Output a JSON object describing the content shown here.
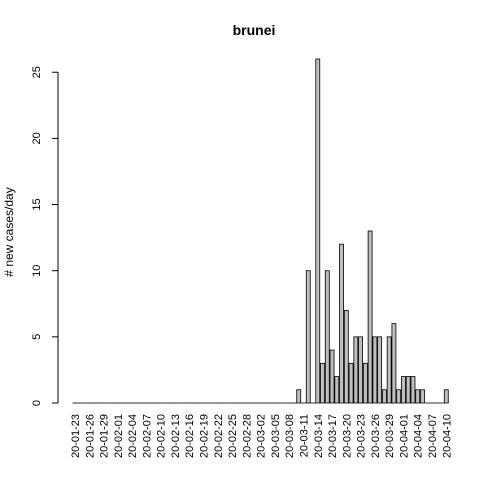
{
  "chart_data": {
    "type": "bar",
    "title": "brunei",
    "xlabel": "",
    "ylabel": "# new cases/day",
    "ylim": [
      0,
      26
    ],
    "yticks": [
      0,
      5,
      10,
      15,
      20,
      25
    ],
    "categories": [
      "20-01-23",
      "20-01-24",
      "20-01-25",
      "20-01-26",
      "20-01-27",
      "20-01-28",
      "20-01-29",
      "20-01-30",
      "20-01-31",
      "20-02-01",
      "20-02-02",
      "20-02-03",
      "20-02-04",
      "20-02-05",
      "20-02-06",
      "20-02-07",
      "20-02-08",
      "20-02-09",
      "20-02-10",
      "20-02-11",
      "20-02-12",
      "20-02-13",
      "20-02-14",
      "20-02-15",
      "20-02-16",
      "20-02-17",
      "20-02-18",
      "20-02-19",
      "20-02-20",
      "20-02-21",
      "20-02-22",
      "20-02-23",
      "20-02-24",
      "20-02-25",
      "20-02-26",
      "20-02-27",
      "20-02-28",
      "20-02-29",
      "20-03-01",
      "20-03-02",
      "20-03-03",
      "20-03-04",
      "20-03-05",
      "20-03-06",
      "20-03-07",
      "20-03-08",
      "20-03-09",
      "20-03-10",
      "20-03-11",
      "20-03-12",
      "20-03-13",
      "20-03-14",
      "20-03-15",
      "20-03-16",
      "20-03-17",
      "20-03-18",
      "20-03-19",
      "20-03-20",
      "20-03-21",
      "20-03-22",
      "20-03-23",
      "20-03-24",
      "20-03-25",
      "20-03-26",
      "20-03-27",
      "20-03-28",
      "20-03-29",
      "20-03-30",
      "20-03-31",
      "20-04-01",
      "20-04-02",
      "20-04-03",
      "20-04-04",
      "20-04-05",
      "20-04-06",
      "20-04-07",
      "20-04-08",
      "20-04-09",
      "20-04-10"
    ],
    "values": [
      0,
      0,
      0,
      0,
      0,
      0,
      0,
      0,
      0,
      0,
      0,
      0,
      0,
      0,
      0,
      0,
      0,
      0,
      0,
      0,
      0,
      0,
      0,
      0,
      0,
      0,
      0,
      0,
      0,
      0,
      0,
      0,
      0,
      0,
      0,
      0,
      0,
      0,
      0,
      0,
      0,
      0,
      0,
      0,
      0,
      0,
      0,
      1,
      0,
      10,
      0,
      26,
      3,
      10,
      4,
      2,
      12,
      7,
      3,
      5,
      5,
      3,
      13,
      5,
      5,
      1,
      5,
      6,
      1,
      2,
      2,
      2,
      1,
      1,
      0,
      0,
      0,
      0,
      1
    ],
    "xtick_labels": [
      "20-01-23",
      "20-01-26",
      "20-01-29",
      "20-02-01",
      "20-02-04",
      "20-02-07",
      "20-02-10",
      "20-02-13",
      "20-02-16",
      "20-02-19",
      "20-02-22",
      "20-02-25",
      "20-02-28",
      "20-03-02",
      "20-03-05",
      "20-03-08",
      "20-03-11",
      "20-03-14",
      "20-03-17",
      "20-03-20",
      "20-03-23",
      "20-03-26",
      "20-03-29",
      "20-04-01",
      "20-04-04",
      "20-04-07",
      "20-04-10"
    ],
    "bar_fill": "#bebebe",
    "bar_stroke": "#000000",
    "grid": false,
    "legend": "none"
  }
}
